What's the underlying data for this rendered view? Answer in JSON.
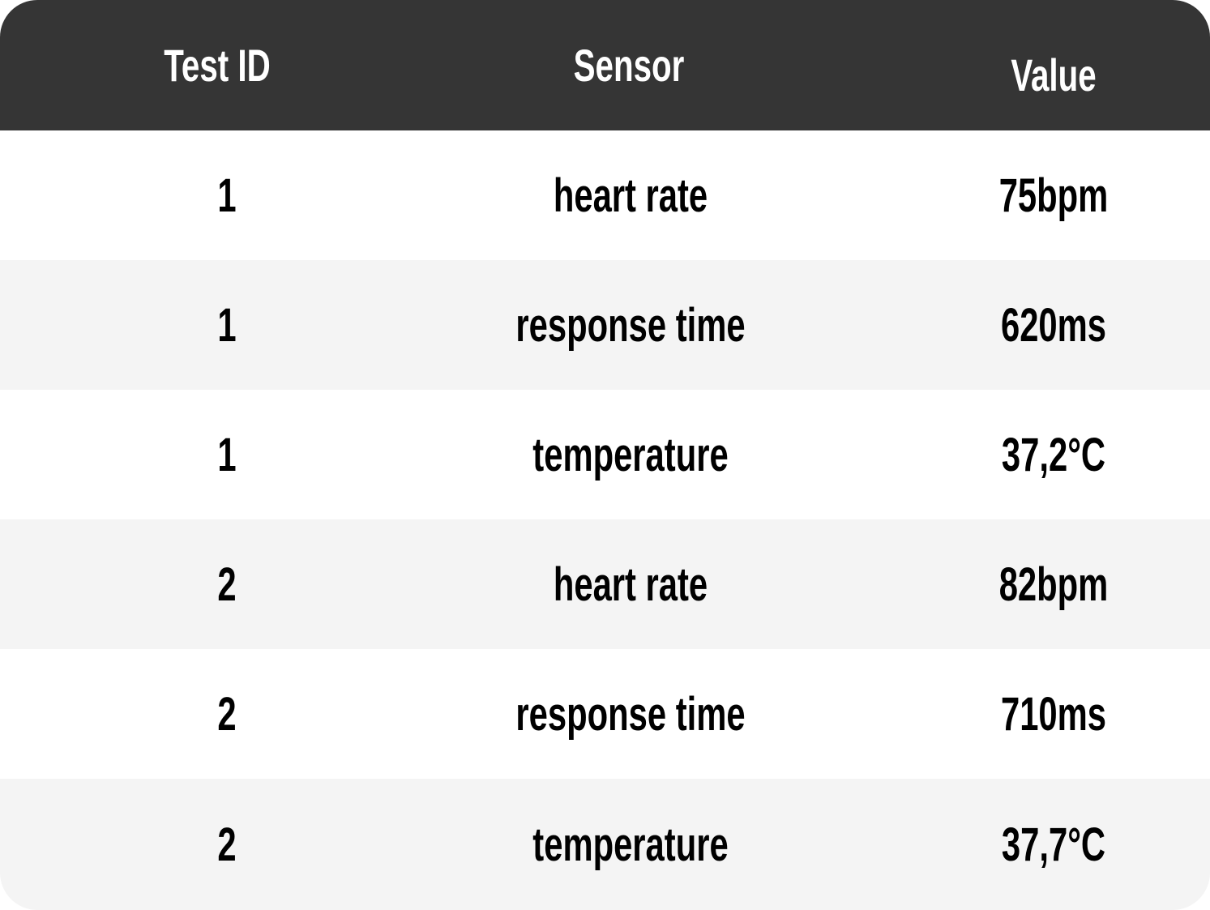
{
  "colors": {
    "header_bg": "#353535",
    "header_text": "#ffffff",
    "row_odd_bg": "#ffffff",
    "row_even_bg": "#f4f4f4",
    "body_text": "#000000"
  },
  "table": {
    "columns": [
      "Test ID",
      "Sensor",
      "Value"
    ],
    "rows": [
      {
        "test_id": "1",
        "sensor": "heart rate",
        "value": "75bpm"
      },
      {
        "test_id": "1",
        "sensor": "response time",
        "value": "620ms"
      },
      {
        "test_id": "1",
        "sensor": "temperature",
        "value": "37,2°C"
      },
      {
        "test_id": "2",
        "sensor": "heart rate",
        "value": "82bpm"
      },
      {
        "test_id": "2",
        "sensor": "response time",
        "value": "710ms"
      },
      {
        "test_id": "2",
        "sensor": "temperature",
        "value": "37,7°C"
      }
    ]
  }
}
